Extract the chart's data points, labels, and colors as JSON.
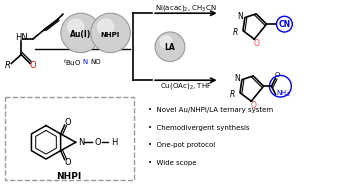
{
  "bg_color": "#ffffff",
  "bullet_points": [
    "Novel Au/NHPI/LA ternary system",
    "Chemodivergent synthesis",
    "One-pot protocol",
    "Wide scope"
  ],
  "sphere1_label": "Au(I)",
  "sphere2_label": "NHPI",
  "sphere3_label": "LA",
  "tbuono_pre": "$^t$BuO",
  "tbuono_N": "N",
  "tbuono_O": "NO",
  "arrow1_text": "Ni(acac)$_2$, CH$_3$CN",
  "arrow2_text": "Cu(OAc)$_2$, THF",
  "nhpi_box_label": "NHPI",
  "red_color": "#ff0000",
  "blue_color": "#0000ff",
  "black_color": "#000000",
  "sphere_fill": "#d0d0d0",
  "sphere_edge": "#999999",
  "sphere_highlight": "#f0f0f0",
  "dbox_color": "#999999",
  "ox1_O_color": "#ff4444",
  "ox2_O_color": "#ff4444"
}
